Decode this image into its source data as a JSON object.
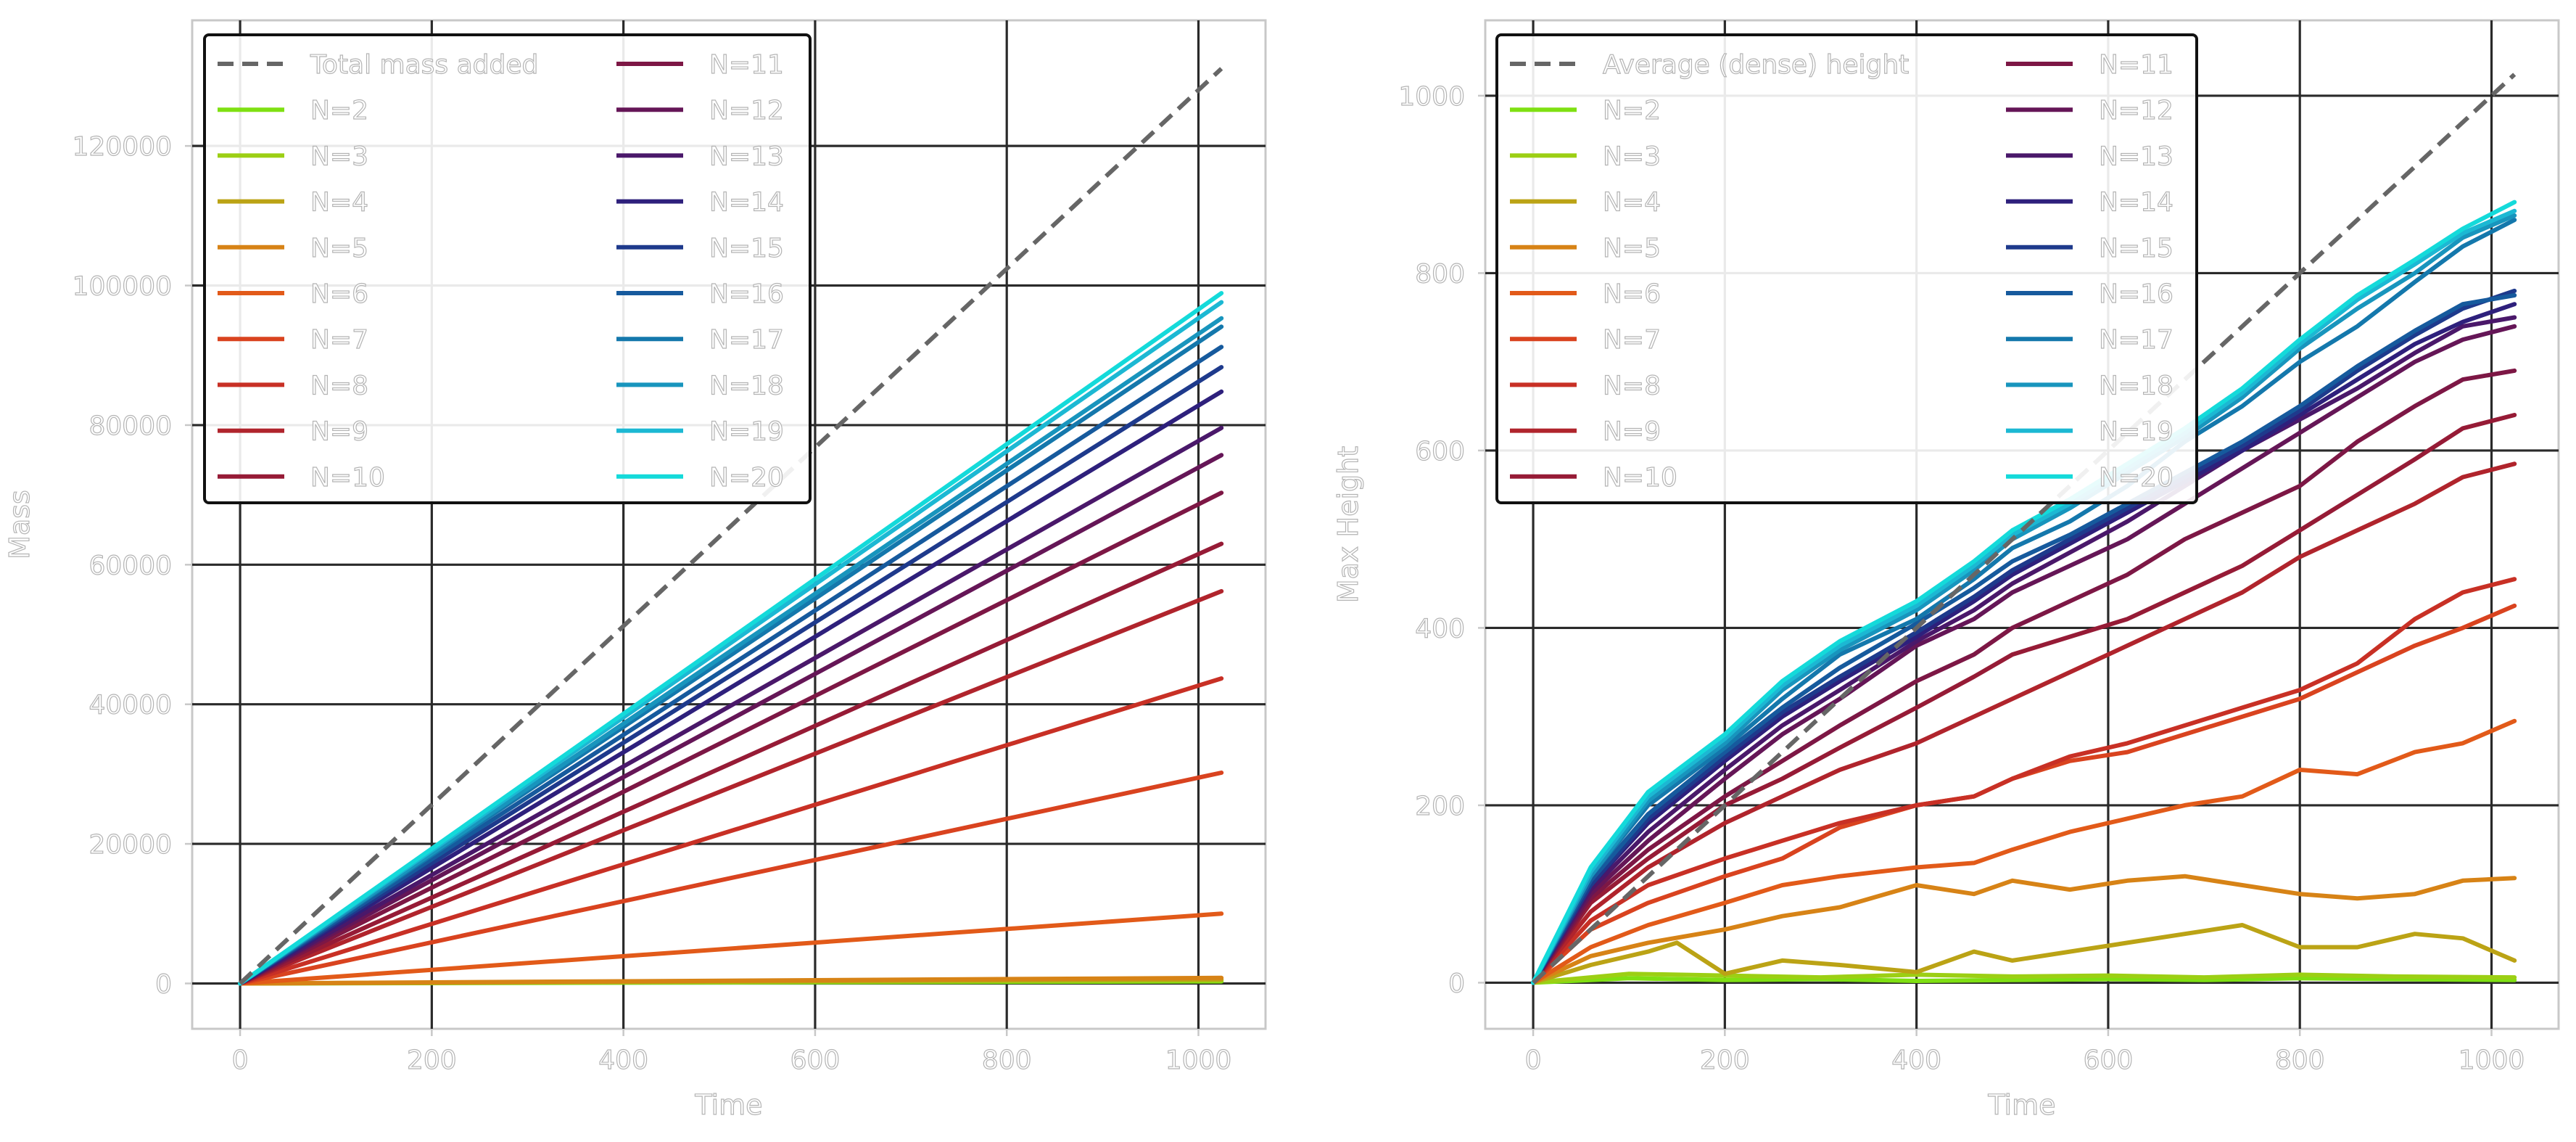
{
  "chart_data": [
    {
      "type": "line",
      "ylabel": "Mass",
      "xlabel": "Time",
      "xlim": [
        -50,
        1070
      ],
      "ylim": [
        -6500,
        138000
      ],
      "xticks": [
        0,
        200,
        400,
        600,
        800,
        1000
      ],
      "yticks": [
        0,
        20000,
        40000,
        60000,
        80000,
        100000,
        120000
      ],
      "xtick_labels": [
        "0",
        "200",
        "400",
        "600",
        "800",
        "1000"
      ],
      "ytick_labels": [
        "0",
        "20000",
        "40000",
        "60000",
        "80000",
        "100000",
        "120000"
      ],
      "grid": true,
      "legend_position": "top-left",
      "legend_columns": 2,
      "reference_line": {
        "name": "Total mass added",
        "color": "#666666",
        "style": "dashed",
        "x": [
          0,
          1024
        ],
        "y": [
          0,
          131072
        ]
      },
      "series": [
        {
          "name": "N=2",
          "color": "#7fe012",
          "x": [
            0,
            1024
          ],
          "y": [
            0,
            300
          ]
        },
        {
          "name": "N=3",
          "color": "#9ccf14",
          "x": [
            0,
            1024
          ],
          "y": [
            0,
            450
          ]
        },
        {
          "name": "N=4",
          "color": "#bba315",
          "x": [
            0,
            1024
          ],
          "y": [
            0,
            600
          ]
        },
        {
          "name": "N=5",
          "color": "#d78316",
          "x": [
            0,
            1024
          ],
          "y": [
            0,
            800
          ]
        },
        {
          "name": "N=6",
          "color": "#e25a19",
          "x": [
            0,
            1024
          ],
          "y": [
            0,
            10000
          ]
        },
        {
          "name": "N=7",
          "color": "#d9431f",
          "x": [
            0,
            1024
          ],
          "y": [
            0,
            30200
          ]
        },
        {
          "name": "N=8",
          "color": "#c83025",
          "x": [
            0,
            1024
          ],
          "y": [
            0,
            43700
          ]
        },
        {
          "name": "N=9",
          "color": "#b0242c",
          "x": [
            0,
            1024
          ],
          "y": [
            0,
            56200
          ]
        },
        {
          "name": "N=10",
          "color": "#961b36",
          "x": [
            0,
            1024
          ],
          "y": [
            0,
            63000
          ]
        },
        {
          "name": "N=11",
          "color": "#7d1745",
          "x": [
            0,
            1024
          ],
          "y": [
            0,
            70300
          ]
        },
        {
          "name": "N=12",
          "color": "#651657",
          "x": [
            0,
            1024
          ],
          "y": [
            0,
            75700
          ]
        },
        {
          "name": "N=13",
          "color": "#4a186a",
          "x": [
            0,
            1024
          ],
          "y": [
            0,
            79600
          ]
        },
        {
          "name": "N=14",
          "color": "#2e207c",
          "x": [
            0,
            1024
          ],
          "y": [
            0,
            84800
          ]
        },
        {
          "name": "N=15",
          "color": "#1e3a8c",
          "x": [
            0,
            1024
          ],
          "y": [
            0,
            88300
          ]
        },
        {
          "name": "N=16",
          "color": "#165a9d",
          "x": [
            0,
            1024
          ],
          "y": [
            0,
            91200
          ]
        },
        {
          "name": "N=17",
          "color": "#1478ac",
          "x": [
            0,
            1024
          ],
          "y": [
            0,
            94100
          ]
        },
        {
          "name": "N=18",
          "color": "#1895bd",
          "x": [
            0,
            1024
          ],
          "y": [
            0,
            95300
          ]
        },
        {
          "name": "N=19",
          "color": "#1cb8d3",
          "x": [
            0,
            1024
          ],
          "y": [
            0,
            97600
          ]
        },
        {
          "name": "N=20",
          "color": "#14dada",
          "x": [
            0,
            1024
          ],
          "y": [
            0,
            98900
          ]
        }
      ]
    },
    {
      "type": "line",
      "ylabel": "Max Height",
      "xlabel": "Time",
      "xlim": [
        -50,
        1070
      ],
      "ylim": [
        -52,
        1085
      ],
      "xticks": [
        0,
        200,
        400,
        600,
        800,
        1000
      ],
      "yticks": [
        0,
        200,
        400,
        600,
        800,
        1000
      ],
      "xtick_labels": [
        "0",
        "200",
        "400",
        "600",
        "800",
        "1000"
      ],
      "ytick_labels": [
        "0",
        "200",
        "400",
        "600",
        "800",
        "1000"
      ],
      "grid": true,
      "legend_position": "top-left",
      "legend_columns": 2,
      "reference_line": {
        "name": "Average (dense) height",
        "color": "#666666",
        "style": "dashed",
        "x": [
          0,
          1024
        ],
        "y": [
          0,
          1024
        ]
      },
      "series": [
        {
          "name": "N=2",
          "color": "#7fe012",
          "x": [
            0,
            100,
            200,
            300,
            400,
            500,
            600,
            700,
            800,
            900,
            1024
          ],
          "y": [
            0,
            5,
            3,
            4,
            2,
            3,
            4,
            3,
            5,
            4,
            3
          ]
        },
        {
          "name": "N=3",
          "color": "#9ccf14",
          "x": [
            0,
            100,
            200,
            300,
            400,
            500,
            600,
            700,
            800,
            900,
            1024
          ],
          "y": [
            0,
            10,
            8,
            6,
            9,
            7,
            8,
            6,
            9,
            7,
            6
          ]
        },
        {
          "name": "N=4",
          "color": "#bba315",
          "x": [
            0,
            60,
            120,
            150,
            200,
            260,
            320,
            400,
            460,
            500,
            560,
            620,
            680,
            740,
            800,
            860,
            920,
            970,
            1024
          ],
          "y": [
            0,
            20,
            35,
            45,
            10,
            25,
            20,
            12,
            35,
            25,
            35,
            45,
            55,
            65,
            40,
            40,
            55,
            50,
            25
          ]
        },
        {
          "name": "N=5",
          "color": "#d78316",
          "x": [
            0,
            60,
            120,
            200,
            260,
            320,
            400,
            460,
            500,
            560,
            620,
            680,
            740,
            800,
            860,
            920,
            970,
            1024
          ],
          "y": [
            0,
            30,
            45,
            60,
            75,
            85,
            110,
            100,
            115,
            105,
            115,
            120,
            110,
            100,
            95,
            100,
            115,
            118
          ]
        },
        {
          "name": "N=6",
          "color": "#e25a19",
          "x": [
            0,
            60,
            120,
            200,
            260,
            320,
            400,
            460,
            500,
            560,
            620,
            680,
            740,
            800,
            860,
            920,
            970,
            1024
          ],
          "y": [
            0,
            40,
            65,
            90,
            110,
            120,
            130,
            135,
            150,
            170,
            185,
            200,
            210,
            240,
            235,
            260,
            270,
            295
          ]
        },
        {
          "name": "N=7",
          "color": "#d9431f",
          "x": [
            0,
            60,
            120,
            200,
            260,
            320,
            400,
            460,
            500,
            560,
            620,
            680,
            740,
            800,
            860,
            920,
            970,
            1024
          ],
          "y": [
            0,
            60,
            90,
            120,
            140,
            175,
            200,
            210,
            230,
            250,
            260,
            280,
            300,
            320,
            350,
            380,
            400,
            425
          ]
        },
        {
          "name": "N=8",
          "color": "#c83025",
          "x": [
            0,
            60,
            120,
            200,
            260,
            320,
            400,
            460,
            500,
            560,
            620,
            680,
            740,
            800,
            860,
            920,
            970,
            1024
          ],
          "y": [
            0,
            70,
            110,
            140,
            160,
            180,
            200,
            210,
            230,
            255,
            270,
            290,
            310,
            330,
            360,
            410,
            440,
            455
          ]
        },
        {
          "name": "N=9",
          "color": "#b0242c",
          "x": [
            0,
            60,
            120,
            200,
            260,
            320,
            400,
            460,
            500,
            560,
            620,
            680,
            740,
            800,
            860,
            920,
            970,
            1024
          ],
          "y": [
            0,
            80,
            130,
            180,
            210,
            240,
            270,
            300,
            320,
            350,
            380,
            410,
            440,
            480,
            510,
            540,
            570,
            585
          ]
        },
        {
          "name": "N=10",
          "color": "#961b36",
          "x": [
            0,
            60,
            120,
            200,
            260,
            320,
            400,
            460,
            500,
            560,
            620,
            680,
            740,
            800,
            860,
            920,
            970,
            1024
          ],
          "y": [
            0,
            90,
            140,
            200,
            230,
            265,
            310,
            345,
            370,
            390,
            410,
            440,
            470,
            510,
            550,
            590,
            625,
            640
          ]
        },
        {
          "name": "N=11",
          "color": "#7d1745",
          "x": [
            0,
            60,
            120,
            200,
            260,
            320,
            400,
            460,
            500,
            560,
            620,
            680,
            740,
            800,
            860,
            920,
            970,
            1024
          ],
          "y": [
            0,
            95,
            150,
            210,
            250,
            290,
            340,
            370,
            400,
            430,
            460,
            500,
            530,
            560,
            610,
            650,
            680,
            690
          ]
        },
        {
          "name": "N=12",
          "color": "#651657",
          "x": [
            0,
            60,
            120,
            200,
            260,
            320,
            400,
            460,
            500,
            560,
            620,
            680,
            740,
            800,
            860,
            920,
            970,
            1024
          ],
          "y": [
            0,
            100,
            160,
            230,
            280,
            320,
            380,
            410,
            440,
            470,
            500,
            540,
            580,
            620,
            660,
            700,
            725,
            740
          ]
        },
        {
          "name": "N=13",
          "color": "#4a186a",
          "x": [
            0,
            60,
            120,
            200,
            260,
            320,
            400,
            460,
            500,
            560,
            620,
            680,
            740,
            800,
            860,
            920,
            970,
            1024
          ],
          "y": [
            0,
            105,
            170,
            240,
            290,
            330,
            385,
            420,
            450,
            485,
            520,
            560,
            600,
            635,
            670,
            710,
            740,
            750
          ]
        },
        {
          "name": "N=14",
          "color": "#2e207c",
          "x": [
            0,
            60,
            120,
            200,
            260,
            320,
            400,
            460,
            500,
            560,
            620,
            680,
            740,
            800,
            860,
            920,
            970,
            1024
          ],
          "y": [
            0,
            110,
            180,
            250,
            300,
            340,
            390,
            430,
            460,
            495,
            530,
            565,
            600,
            640,
            680,
            720,
            745,
            765
          ]
        },
        {
          "name": "N=15",
          "color": "#1e3a8c",
          "x": [
            0,
            60,
            120,
            200,
            260,
            320,
            400,
            460,
            500,
            560,
            620,
            680,
            740,
            800,
            860,
            920,
            970,
            1024
          ],
          "y": [
            0,
            110,
            185,
            255,
            305,
            345,
            395,
            435,
            465,
            500,
            535,
            570,
            605,
            645,
            690,
            730,
            760,
            780
          ]
        },
        {
          "name": "N=16",
          "color": "#165a9d",
          "x": [
            0,
            60,
            120,
            200,
            260,
            320,
            400,
            460,
            500,
            560,
            620,
            680,
            740,
            800,
            860,
            920,
            970,
            1024
          ],
          "y": [
            0,
            115,
            190,
            260,
            310,
            355,
            405,
            445,
            475,
            505,
            540,
            575,
            610,
            650,
            695,
            735,
            765,
            775
          ]
        },
        {
          "name": "N=17",
          "color": "#1478ac",
          "x": [
            0,
            60,
            120,
            200,
            260,
            320,
            400,
            460,
            500,
            560,
            620,
            680,
            740,
            800,
            860,
            920,
            970,
            1024
          ],
          "y": [
            0,
            120,
            200,
            265,
            320,
            370,
            410,
            455,
            490,
            520,
            560,
            610,
            650,
            700,
            740,
            790,
            830,
            860
          ]
        },
        {
          "name": "N=18",
          "color": "#1895bd",
          "x": [
            0,
            60,
            120,
            200,
            260,
            320,
            400,
            460,
            500,
            560,
            620,
            680,
            740,
            800,
            860,
            920,
            970,
            1024
          ],
          "y": [
            0,
            120,
            205,
            270,
            330,
            375,
            420,
            465,
            500,
            535,
            575,
            615,
            660,
            715,
            760,
            800,
            840,
            865
          ]
        },
        {
          "name": "N=19",
          "color": "#1cb8d3",
          "x": [
            0,
            60,
            120,
            200,
            260,
            320,
            400,
            460,
            500,
            560,
            620,
            680,
            740,
            800,
            860,
            920,
            970,
            1024
          ],
          "y": [
            0,
            125,
            210,
            275,
            335,
            380,
            425,
            470,
            505,
            540,
            580,
            620,
            665,
            720,
            770,
            810,
            845,
            870
          ]
        },
        {
          "name": "N=20",
          "color": "#14dada",
          "x": [
            0,
            60,
            120,
            200,
            260,
            320,
            400,
            460,
            500,
            560,
            620,
            680,
            740,
            800,
            860,
            920,
            970,
            1024
          ],
          "y": [
            0,
            130,
            215,
            280,
            340,
            385,
            430,
            475,
            510,
            545,
            585,
            625,
            670,
            725,
            775,
            815,
            850,
            880
          ]
        }
      ]
    }
  ]
}
